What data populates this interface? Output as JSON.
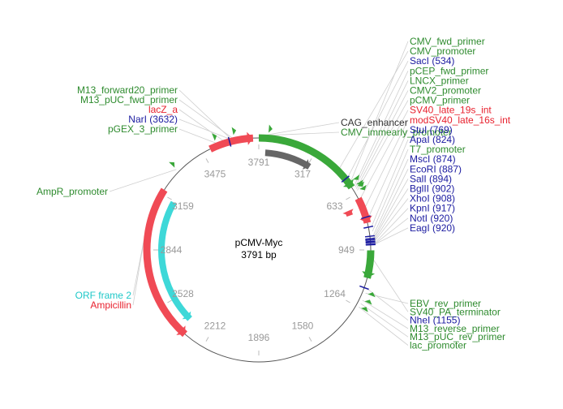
{
  "plasmid": {
    "name": "pCMV-Myc",
    "length_label": "3791 bp",
    "length": 3791
  },
  "tick_labels": [
    "3791",
    "317",
    "633",
    "949",
    "1264",
    "1580",
    "1896",
    "2212",
    "2528",
    "2844",
    "3159",
    "3475"
  ],
  "labels": {
    "left_top": [
      {
        "text": "M13_forward20_primer",
        "color": "#2e8b2e"
      },
      {
        "text": "M13_pUC_fwd_primer",
        "color": "#2e8b2e"
      },
      {
        "text": "lacZ_a",
        "color": "#e8212e"
      },
      {
        "text": "NarI (3632)",
        "color": "#1a1aa0"
      },
      {
        "text": "pGEX_3_primer",
        "color": "#2e8b2e"
      }
    ],
    "left_mid": [
      {
        "text": "AmpR_promoter",
        "color": "#2e8b2e"
      }
    ],
    "left_bottom": [
      {
        "text": "ORF frame 2",
        "color": "#1ec8c8"
      },
      {
        "text": "Ampicillin",
        "color": "#e8212e"
      }
    ],
    "top_center": [
      {
        "text": "CAG_enhancer",
        "color": "#333333"
      },
      {
        "text": "CMV_immearly_promoter",
        "color": "#2e8b2e"
      }
    ],
    "right_top": [
      {
        "text": "CMV_fwd_primer",
        "color": "#2e8b2e"
      },
      {
        "text": "CMV_promoter",
        "color": "#2e8b2e"
      },
      {
        "text": "SacI (534)",
        "color": "#1a1aa0"
      },
      {
        "text": "pCEP_fwd_primer",
        "color": "#2e8b2e"
      },
      {
        "text": "LNCX_primer",
        "color": "#2e8b2e"
      },
      {
        "text": "CMV2_promoter",
        "color": "#2e8b2e"
      },
      {
        "text": "pCMV_primer",
        "color": "#2e8b2e"
      },
      {
        "text": "SV40_late_19s_int",
        "color": "#e8212e"
      },
      {
        "text": "modSV40_late_16s_int",
        "color": "#e8212e"
      },
      {
        "text": "StuI (769)",
        "color": "#1a1aa0"
      },
      {
        "text": "ApaI (824)",
        "color": "#1a1aa0"
      },
      {
        "text": "T7_promoter",
        "color": "#2e8b2e"
      },
      {
        "text": "MscI (874)",
        "color": "#1a1aa0"
      },
      {
        "text": "EcoRI (887)",
        "color": "#1a1aa0"
      },
      {
        "text": "SalI (894)",
        "color": "#1a1aa0"
      },
      {
        "text": "BglII (902)",
        "color": "#1a1aa0"
      },
      {
        "text": "XhoI (908)",
        "color": "#1a1aa0"
      },
      {
        "text": "KpnI (917)",
        "color": "#1a1aa0"
      },
      {
        "text": "NotI (920)",
        "color": "#1a1aa0"
      },
      {
        "text": "EagI (920)",
        "color": "#1a1aa0"
      }
    ],
    "right_bottom": [
      {
        "text": "EBV_rev_primer",
        "color": "#2e8b2e"
      },
      {
        "text": "SV40_PA_terminator",
        "color": "#2e8b2e"
      },
      {
        "text": "NheI (1155)",
        "color": "#1a1aa0"
      },
      {
        "text": "M13_reverse_primer",
        "color": "#2e8b2e"
      },
      {
        "text": "M13_pUC_rev_primer",
        "color": "#2e8b2e"
      },
      {
        "text": "lac_promoter",
        "color": "#2e8b2e"
      }
    ]
  },
  "features": [
    {
      "name": "lacZ_a",
      "start": 3520,
      "end": 3760,
      "color": "#f04a55",
      "strand": "fwd",
      "track": "outer"
    },
    {
      "name": "CMV_promoter",
      "start": 0,
      "end": 590,
      "color": "#3aa83a",
      "strand": "fwd",
      "track": "outer"
    },
    {
      "name": "CAG_enhancer",
      "start": 40,
      "end": 330,
      "color": "#666666",
      "strand": "fwd",
      "track": "inner"
    },
    {
      "name": "SV40_late_19s_int",
      "start": 660,
      "end": 800,
      "color": "#f04a55",
      "strand": "fwd",
      "track": "outer"
    },
    {
      "name": "modSV40_late_16s_int",
      "start": 700,
      "end": 730,
      "color": "#f04a55",
      "strand": "fwd",
      "track": "inner"
    },
    {
      "name": "SV40_PA_terminator",
      "start": 950,
      "end": 1100,
      "color": "#3aa83a",
      "strand": "fwd",
      "track": "outer"
    },
    {
      "name": "Ampicillin",
      "start": 2330,
      "end": 3185,
      "color": "#f04a55",
      "strand": "rev",
      "track": "outer"
    },
    {
      "name": "ORF frame 2",
      "start": 2370,
      "end": 3150,
      "color": "#3ed8d8",
      "strand": "rev",
      "track": "inner"
    }
  ],
  "colors": {
    "backbone": "#555555",
    "leader": "#cfcfcf",
    "site": "#1a1aa0"
  }
}
